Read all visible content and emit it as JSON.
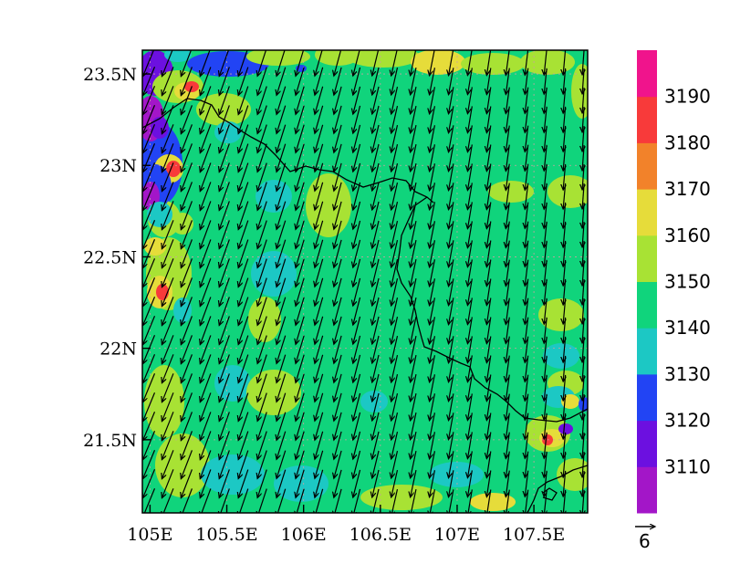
{
  "chart_data": {
    "type": "heatmap",
    "overlay": "wind vectors",
    "x_ticks": [
      "105E",
      "105.5E",
      "106E",
      "106.5E",
      "107E",
      "107.5E"
    ],
    "x_tick_values": [
      105.0,
      105.5,
      106.0,
      106.5,
      107.0,
      107.5
    ],
    "y_ticks": [
      "23.5N",
      "23N",
      "22.5N",
      "22N",
      "21.5N"
    ],
    "y_tick_values": [
      23.5,
      23.0,
      22.5,
      22.0,
      21.5
    ],
    "xlim": [
      104.95,
      107.85
    ],
    "ylim": [
      21.1,
      23.63
    ],
    "grid": true,
    "colorbar": {
      "labels": [
        "3110",
        "3120",
        "3130",
        "3140",
        "3150",
        "3160",
        "3170",
        "3180",
        "3190"
      ],
      "colors": [
        "#a316c8",
        "#6c10e0",
        "#2244f4",
        "#1cc8c4",
        "#10d47c",
        "#a8e234",
        "#e6dc3a",
        "#f2822a",
        "#f83a3a",
        "#f0148c"
      ]
    },
    "background_level_color": "#10d47c",
    "reference_vector_label": "6",
    "dominant_wind_direction": "from north-northeast"
  }
}
